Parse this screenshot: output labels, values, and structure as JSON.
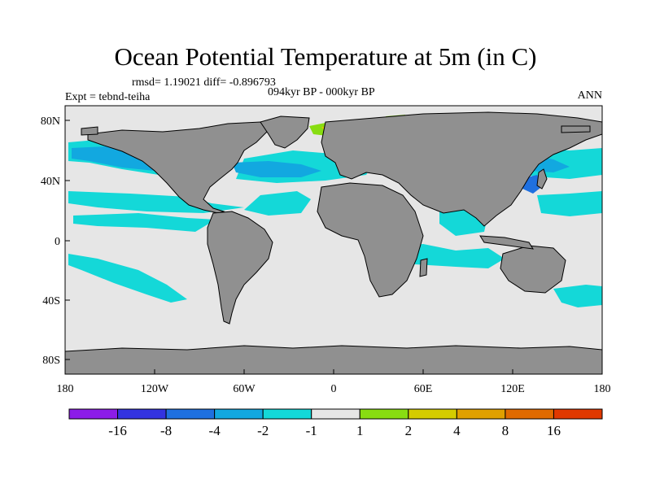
{
  "title": "Ocean Potential Temperature at 5m (in C)",
  "stats": "rmsd= 1.19021 diff= -0.896793",
  "experiment": "Expt = tebnd-teiha",
  "period": "094kyr BP - 000kyr BP",
  "season": "ANN",
  "axes": {
    "x_ticks": [
      "180",
      "120W",
      "60W",
      "0",
      "60E",
      "120E",
      "180"
    ],
    "y_ticks": [
      "80N",
      "40N",
      "0",
      "40S",
      "80S"
    ]
  },
  "colorbar": {
    "colors": [
      "#8c1ce8",
      "#3333e0",
      "#1f70e0",
      "#12a8e0",
      "#14d8d8",
      "#e6e6e6",
      "#88dd11",
      "#d4cc00",
      "#e0a000",
      "#e06a00",
      "#e03800"
    ],
    "labels": [
      "-16",
      "-8",
      "-4",
      "-2",
      "-1",
      "1",
      "2",
      "4",
      "8",
      "16"
    ]
  },
  "palette": {
    "land": "#909090",
    "ocean_neutral": "#e6e6e6",
    "cyan": "#14d8d8",
    "blue": "#12a8e0",
    "deep_blue": "#1f70e0",
    "green": "#88dd11",
    "yellow": "#d4cc00"
  }
}
